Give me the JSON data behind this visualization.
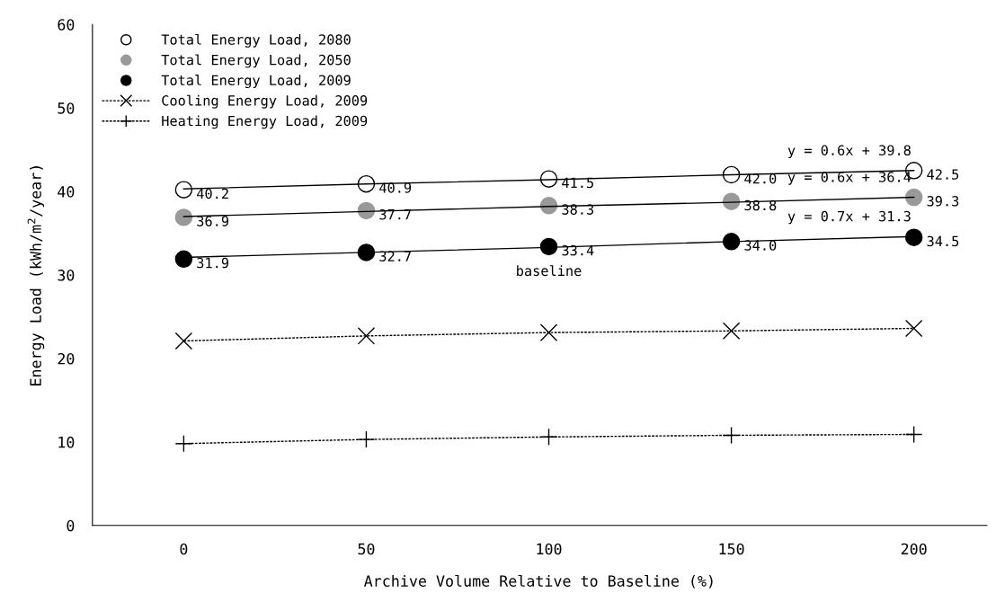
{
  "chart_data": {
    "type": "scatter",
    "xlabel": "Archive Volume Relative to Baseline (%)",
    "ylabel": "Energy Load (kWh/m$^{2}$/year)",
    "x": [
      0,
      50,
      100,
      150,
      200
    ],
    "series": [
      {
        "name": "Total Energy Load, 2080",
        "color": "#ffffff",
        "marker": "circle",
        "line_style": "none",
        "values": [
          40.2,
          40.9,
          41.5,
          42.0,
          42.5
        ],
        "value_labels": [
          "40.2",
          "40.9",
          "41.5",
          "42.0",
          "42.5"
        ]
      },
      {
        "name": "Total Energy Load, 2050",
        "color": "#999999",
        "marker": "circle",
        "line_style": "none",
        "values": [
          36.9,
          37.7,
          38.3,
          38.8,
          39.3
        ],
        "value_labels": [
          "36.9",
          "37.7",
          "38.3",
          "38.8",
          "39.3"
        ]
      },
      {
        "name": "Total Energy Load, 2009",
        "color": "#000000",
        "marker": "circle",
        "line_style": "none",
        "values": [
          31.9,
          32.7,
          33.4,
          34.0,
          34.5
        ],
        "value_labels": [
          "31.9",
          "32.7",
          "33.4",
          "34.0",
          "34.5"
        ]
      },
      {
        "name": "Cooling Energy Load, 2009",
        "type": "line",
        "color": "#000000",
        "marker": "cross",
        "line_style": "dotted",
        "values": [
          22.1,
          22.7,
          23.1,
          23.3,
          23.6
        ]
      },
      {
        "name": "Heating Energy Load, 2009",
        "type": "line",
        "color": "#000000",
        "marker": "plus",
        "line_style": "dotted",
        "values": [
          9.8,
          10.3,
          10.6,
          10.8,
          10.9
        ]
      },
      {
        "type": "line",
        "color": "#000000",
        "marker": "none",
        "line_style": "solid",
        "values": [
          40.3,
          40.9,
          41.4,
          42.0,
          42.5
        ]
      },
      {
        "type": "line",
        "color": "#000000",
        "marker": "none",
        "line_style": "solid",
        "values": [
          37.0,
          37.6,
          38.2,
          38.7,
          39.3
        ]
      },
      {
        "type": "line",
        "color": "#000000",
        "marker": "none",
        "line_style": "solid",
        "values": [
          32.1,
          32.7,
          33.3,
          34.0,
          34.6
        ]
      }
    ],
    "annotations": [
      "y = 0.6x + 39.8",
      "y = 0.6x + 36.4",
      "y = 0.7x + 31.3",
      {
        "text": "baseline",
        "x": 100,
        "y": 33.4
      }
    ],
    "xlim": [
      -25,
      220
    ],
    "xticks": [
      0,
      50,
      100,
      150,
      200
    ],
    "ylim": [
      0,
      60
    ],
    "yticks": [
      0,
      10,
      20,
      30,
      40,
      50,
      60
    ],
    "grid": false,
    "legend": "top left"
  }
}
